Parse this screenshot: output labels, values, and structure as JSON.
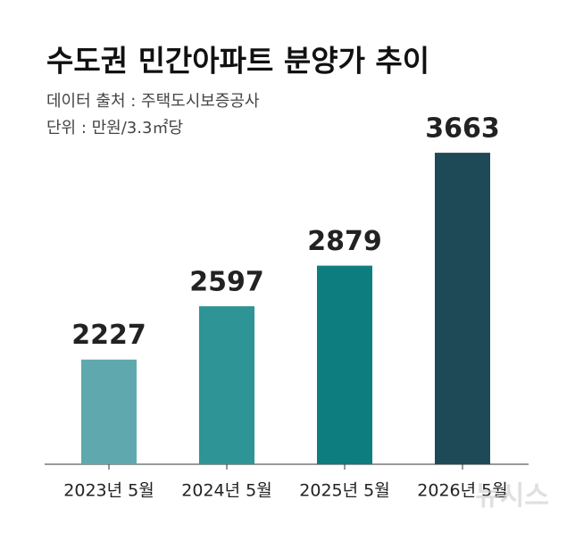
{
  "chart_data": {
    "type": "bar",
    "title": "수도권 민간아파트 분양가 추이",
    "subtitle": [
      "데이터 출처 : 주택도시보증공사",
      "단위 : 만원/3.3㎡당"
    ],
    "categories": [
      "2023년 5월",
      "2024년 5월",
      "2025년 5월",
      "2026년 5월"
    ],
    "values": [
      2227,
      2597,
      2879,
      3663
    ],
    "colors": [
      "#5fa8ad",
      "#2e9496",
      "#0e7d80",
      "#1e4a57"
    ],
    "ylim": [
      1500,
      3800
    ],
    "watermark": "뉴시스"
  }
}
